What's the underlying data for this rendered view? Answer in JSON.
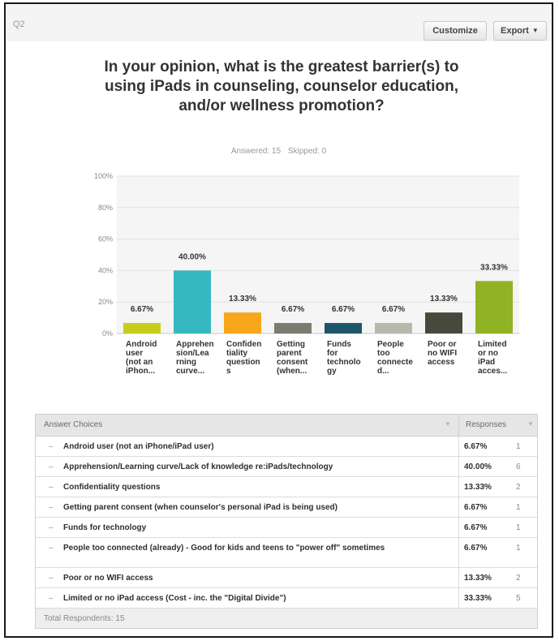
{
  "question_label": "Q2",
  "toolbar": {
    "customize_label": "Customize",
    "export_label": "Export"
  },
  "title": "In your opinion, what is the greatest barrier(s) to using iPads in counseling, counselor education, and/or wellness promotion?",
  "stats": {
    "answered": "Answered: 15",
    "skipped": "Skipped: 0"
  },
  "colors": {
    "bar_colors": [
      "#c7cd1c",
      "#36b8c1",
      "#f6a71a",
      "#7b7b70",
      "#1f5569",
      "#b8b9ad",
      "#48493d",
      "#90b225"
    ]
  },
  "chart_data": {
    "type": "bar",
    "categories": [
      [
        "Android",
        "user",
        "(not an",
        "iPhon..."
      ],
      [
        "Apprehen",
        "sion/Lea",
        "rning",
        "curve..."
      ],
      [
        "Confiden",
        "tiality",
        "question",
        "s"
      ],
      [
        "Getting",
        "parent",
        "consent",
        "(when..."
      ],
      [
        "Funds",
        "for",
        "technolo",
        "gy"
      ],
      [
        "People",
        "too",
        "connecte",
        "d..."
      ],
      [
        "Poor or",
        "no WIFI",
        "access"
      ],
      [
        "Limited",
        "or no",
        "iPad",
        "acces..."
      ]
    ],
    "values": [
      6.67,
      40.0,
      13.33,
      6.67,
      6.67,
      6.67,
      13.33,
      33.33
    ],
    "value_labels": [
      "6.67%",
      "40.00%",
      "13.33%",
      "6.67%",
      "6.67%",
      "6.67%",
      "13.33%",
      "33.33%"
    ],
    "y_ticks": [
      "0%",
      "20%",
      "40%",
      "60%",
      "80%",
      "100%"
    ],
    "ylim": [
      0,
      100
    ],
    "grid": true
  },
  "table": {
    "header": {
      "choices": "Answer Choices",
      "responses": "Responses"
    },
    "rows": [
      {
        "label": "Android user (not an iPhone/iPad user)",
        "pct": "6.67%",
        "count": "1"
      },
      {
        "label": "Apprehension/Learning curve/Lack of knowledge re:iPads/technology",
        "pct": "40.00%",
        "count": "6"
      },
      {
        "label": "Confidentiality questions",
        "pct": "13.33%",
        "count": "2"
      },
      {
        "label": "Getting parent consent (when counselor's personal iPad is being used)",
        "pct": "6.67%",
        "count": "1"
      },
      {
        "label": "Funds for technology",
        "pct": "6.67%",
        "count": "1"
      },
      {
        "label": "People too connected (already) - Good for kids and teens to \"power off\" sometimes",
        "pct": "6.67%",
        "count": "1"
      },
      {
        "label": "Poor or no WIFI access",
        "pct": "13.33%",
        "count": "2"
      },
      {
        "label": "Limited or no iPad access (Cost - inc. the \"Digital Divide\")",
        "pct": "33.33%",
        "count": "5"
      }
    ],
    "footer": "Total Respondents: 15"
  }
}
